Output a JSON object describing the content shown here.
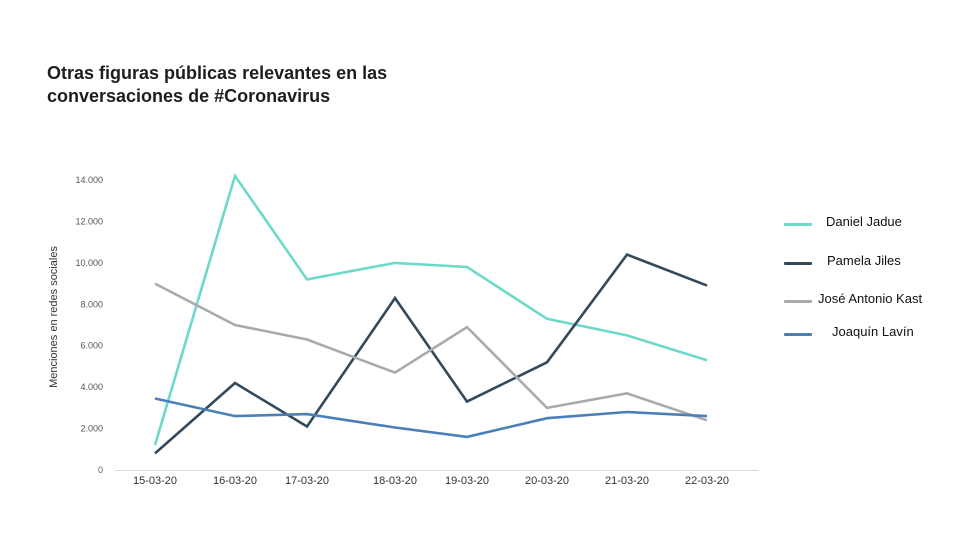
{
  "title": {
    "line1_prefix": "Otras ",
    "line1_bold": "figuras públicas",
    "line1_suffix": " relevantes en las",
    "line2": "conversaciones de #Coronavirus"
  },
  "chart_data": {
    "type": "line",
    "ylabel": "Menciones en redes sociales",
    "xlabel": "",
    "ylim": [
      0,
      14000
    ],
    "yticks": [
      0,
      2000,
      4000,
      6000,
      8000,
      10000,
      12000,
      14000
    ],
    "ytick_labels": [
      "0",
      "2.000",
      "4.000",
      "6.000",
      "8.000",
      "10.000",
      "12.000",
      "14.000"
    ],
    "categories": [
      "15-03-20",
      "16-03-20",
      "17-03-20",
      "18-03-20",
      "19-03-20",
      "20-03-20",
      "21-03-20",
      "22-03-20"
    ],
    "grid": false,
    "legend_position": "right",
    "series": [
      {
        "name": "Daniel Jadue",
        "color": "#6ed9c9",
        "values": [
          1200,
          14200,
          9200,
          10000,
          9800,
          7300,
          6500,
          5300
        ]
      },
      {
        "name": "Pamela Jiles",
        "color": "#34495a",
        "values": [
          800,
          4200,
          2100,
          8300,
          3300,
          5200,
          10400,
          8900
        ]
      },
      {
        "name": "José Antonio Kast",
        "color": "#aaaaaa",
        "values": [
          9000,
          7000,
          6300,
          4700,
          6900,
          3000,
          3700,
          2400
        ]
      },
      {
        "name": "Joaquín Lavín",
        "color": "#4a7fb8",
        "values": [
          3450,
          2600,
          2700,
          2050,
          1600,
          2500,
          2800,
          2600
        ]
      }
    ]
  }
}
